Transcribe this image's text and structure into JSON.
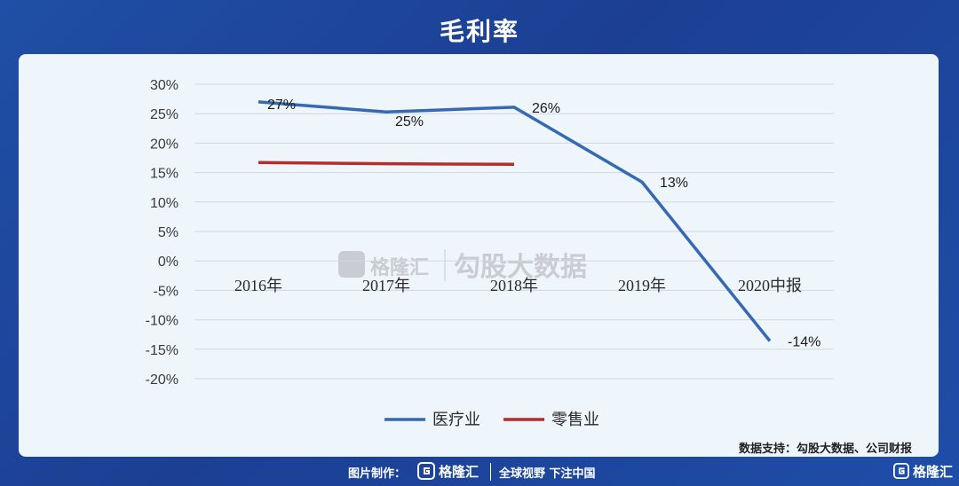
{
  "header": {
    "title": "毛利率"
  },
  "watermark": {
    "brand": "格隆汇",
    "text": "勾股大数据"
  },
  "source": "数据支持：勾股大数据、公司财报",
  "footer": {
    "credit_label": "图片制作：",
    "brand": "格隆汇",
    "slogan": "全球视野 下注中国"
  },
  "corner_logo": "格隆汇",
  "colors": {
    "medical": "#3569b4",
    "retail": "#b52d2d"
  },
  "chart_data": {
    "type": "line",
    "categories": [
      "2016年",
      "2017年",
      "2018年",
      "2019年",
      "2020中报"
    ],
    "y_ticks": [
      "30%",
      "25%",
      "20%",
      "15%",
      "10%",
      "5%",
      "0%",
      "-5%",
      "-10%",
      "-15%",
      "-20%"
    ],
    "ylim": [
      -20,
      30
    ],
    "grid": true,
    "legend_position": "bottom",
    "series": [
      {
        "name": "医疗业",
        "values": [
          27,
          25.3,
          26.1,
          13.4,
          -13.6
        ],
        "labels": [
          "27%",
          "25%",
          "26%",
          "13%",
          "-14%"
        ]
      },
      {
        "name": "零售业",
        "values": [
          16.7,
          16.5,
          16.4,
          null,
          null
        ],
        "labels": []
      }
    ]
  }
}
